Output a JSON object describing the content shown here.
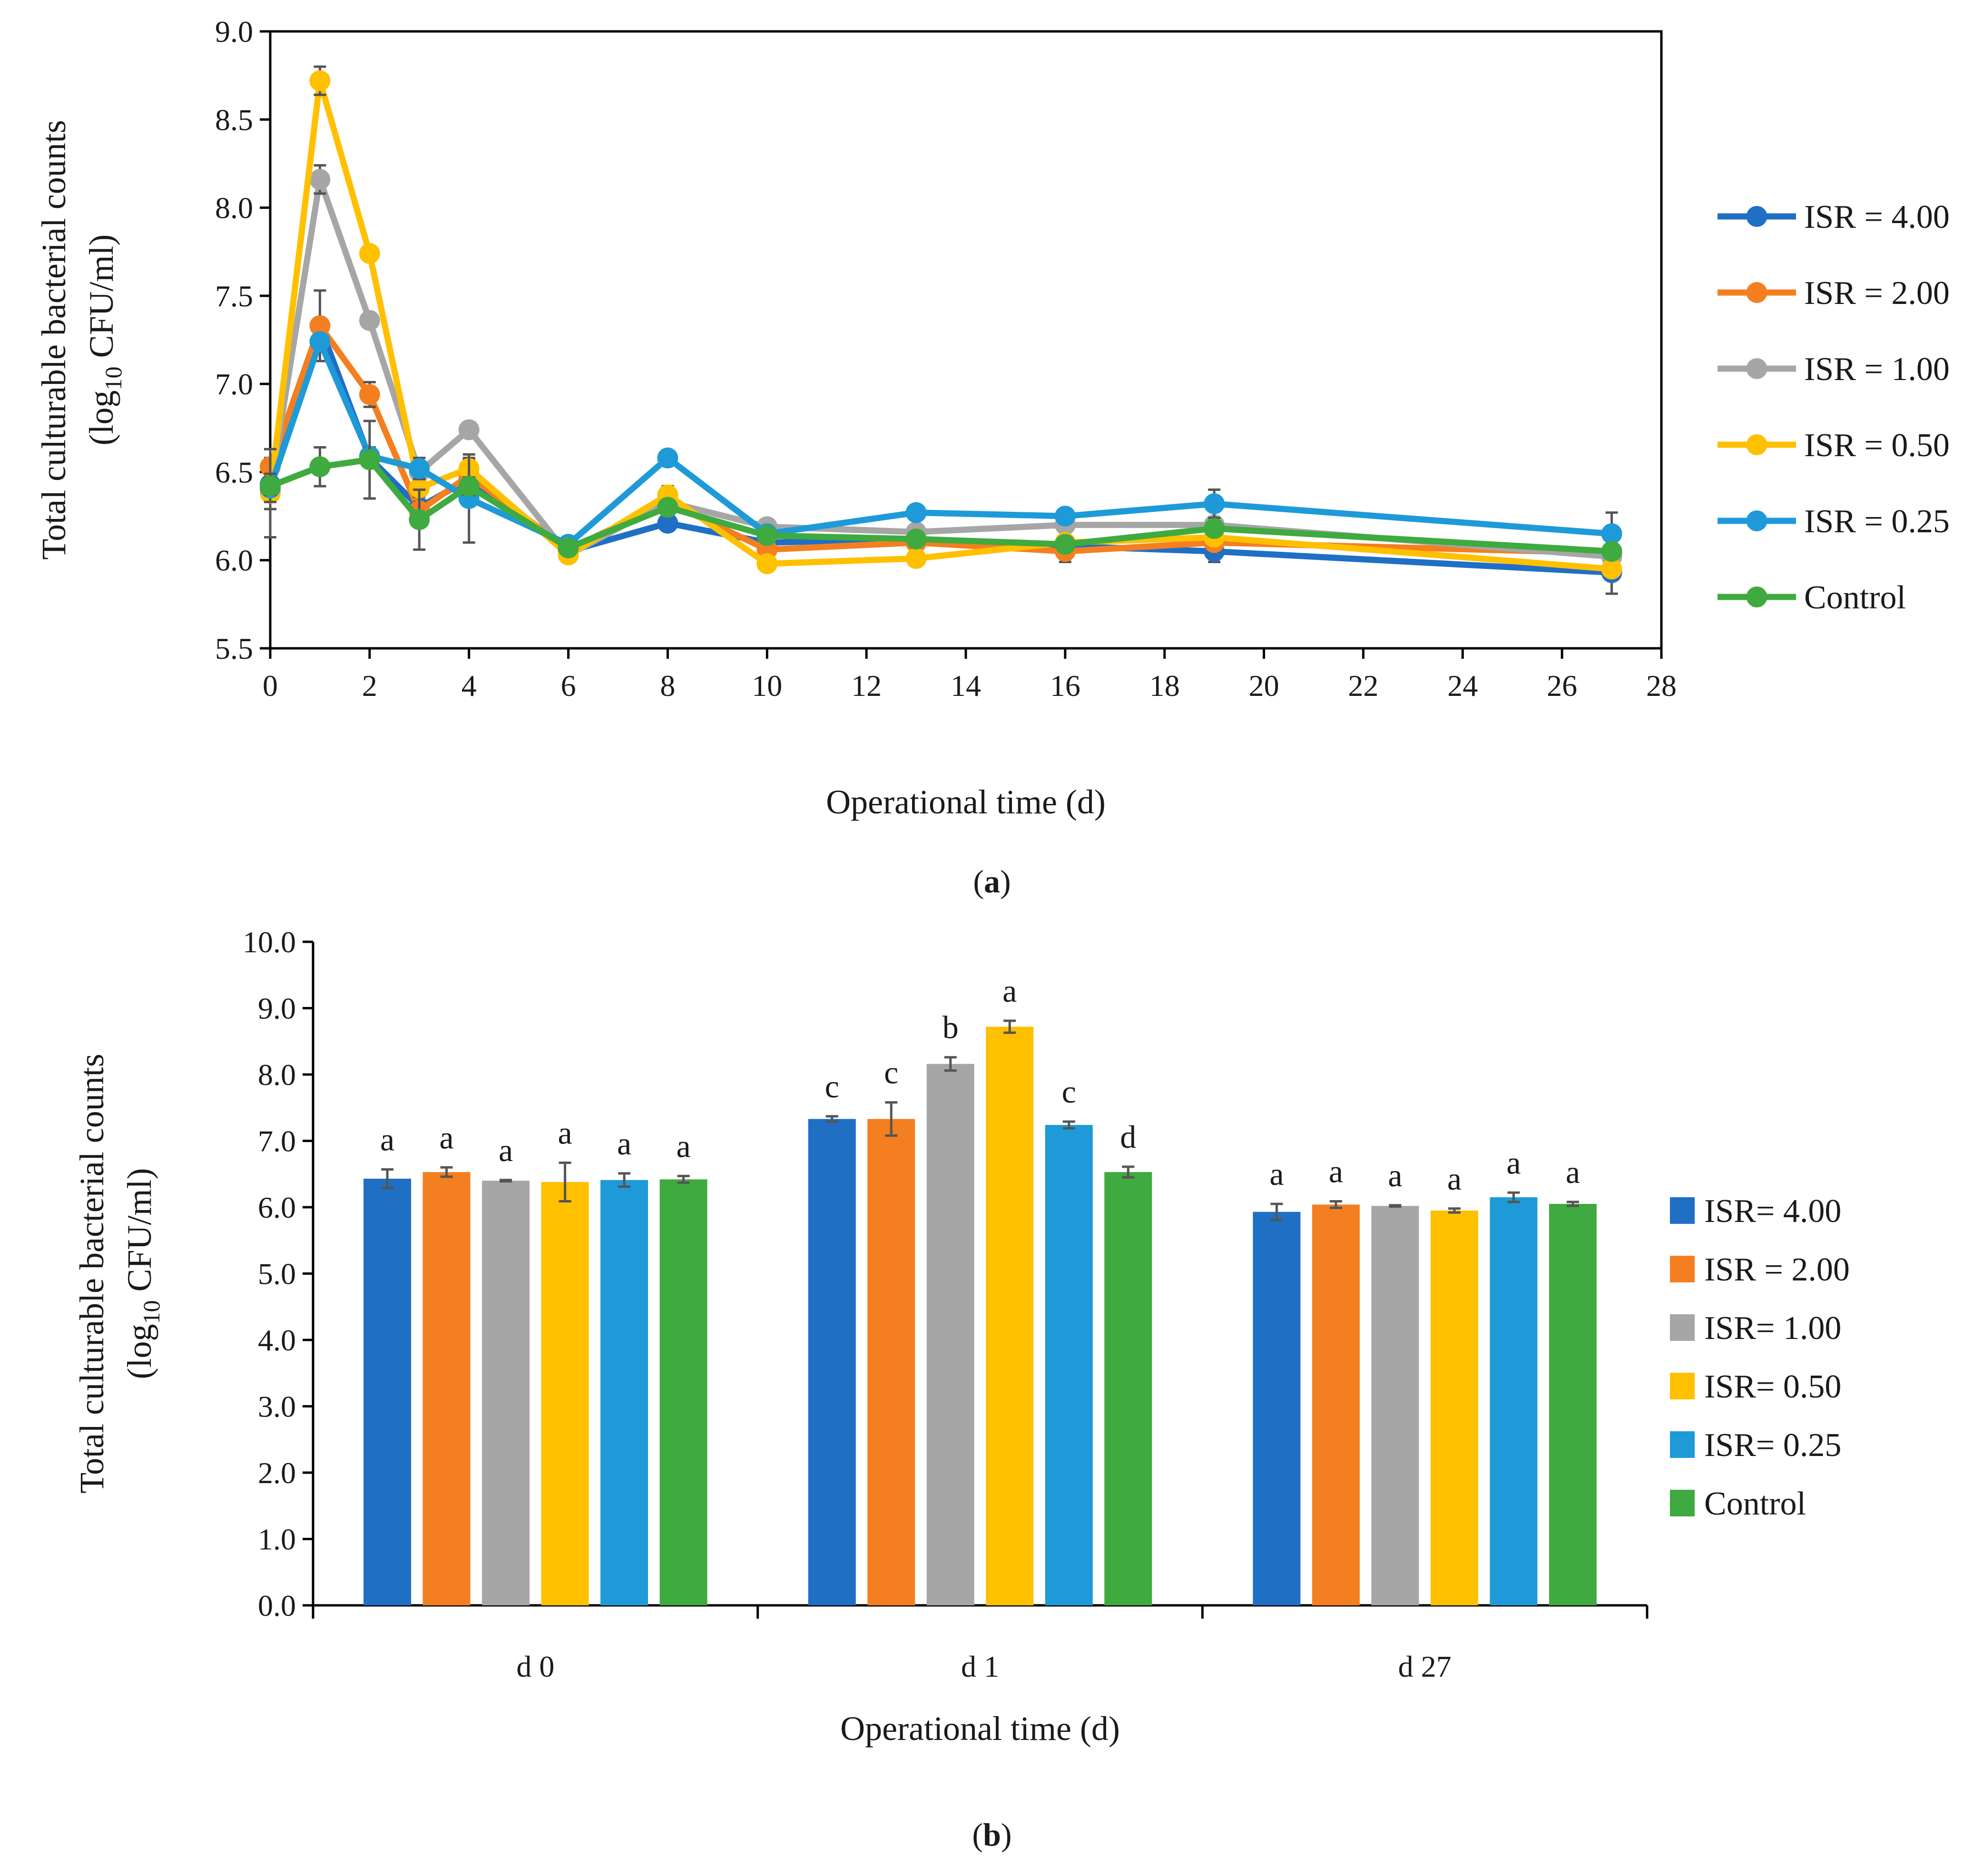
{
  "chart_data": [
    {
      "type": "line",
      "panel_label": "a",
      "title": "",
      "ylabel_line1": "Total culturable bacterial counts",
      "ylabel_line2": {
        "prefix": "(log",
        "sub": "10",
        "suffix": " CFU/ml)"
      },
      "xlabel": "Operational time (d)",
      "ylim": [
        5.5,
        9.0
      ],
      "ystep": 0.5,
      "xlim": [
        0,
        28
      ],
      "xstep": 2,
      "legend_position": "right",
      "x": [
        0,
        1,
        2,
        3,
        4,
        6,
        8,
        10,
        13,
        16,
        19,
        27
      ],
      "series": [
        {
          "name": "ISR = 4.00",
          "color": "#1f6fc5",
          "values": [
            6.43,
            7.33,
            6.58,
            6.3,
            6.46,
            6.05,
            6.21,
            6.1,
            6.12,
            6.08,
            6.05,
            5.93
          ],
          "errors": [
            0.14,
            0.03,
            0.05,
            0.1,
            0.12,
            0.05,
            0.04,
            0.04,
            0.03,
            0.03,
            0.06,
            0.12
          ]
        },
        {
          "name": "ISR = 2.00",
          "color": "#f47f20",
          "values": [
            6.53,
            7.33,
            6.94,
            6.28,
            6.48,
            6.06,
            6.33,
            6.06,
            6.1,
            6.05,
            6.1,
            6.04
          ],
          "errors": [
            0.05,
            0.2,
            0.07,
            0.05,
            0.05,
            0.04,
            0.04,
            0.05,
            0.03,
            0.06,
            0.05,
            0.03
          ]
        },
        {
          "name": "ISR = 1.00",
          "color": "#a6a6a6",
          "values": [
            6.4,
            8.16,
            7.36,
            6.5,
            6.74,
            6.03,
            6.33,
            6.19,
            6.16,
            6.2,
            6.2,
            6.02
          ],
          "errors": [
            0.02,
            0.08,
            0.03,
            0.04,
            0.03,
            0.03,
            0.04,
            0.03,
            0.02,
            0.03,
            0.03,
            0.02
          ]
        },
        {
          "name": "ISR = 0.50",
          "color": "#ffc000",
          "values": [
            6.38,
            8.72,
            7.74,
            6.41,
            6.52,
            6.03,
            6.37,
            5.98,
            6.01,
            6.1,
            6.13,
            5.95
          ],
          "errors": [
            0.25,
            0.08,
            0.03,
            0.05,
            0.05,
            0.03,
            0.05,
            0.03,
            0.03,
            0.03,
            0.04,
            0.02
          ]
        },
        {
          "name": "ISR = 0.25",
          "color": "#1e9ad8",
          "values": [
            6.41,
            7.24,
            6.59,
            6.52,
            6.35,
            6.09,
            6.58,
            6.15,
            6.27,
            6.25,
            6.32,
            6.15
          ],
          "errors": [
            0.08,
            0.04,
            0.05,
            0.06,
            0.25,
            0.03,
            0.04,
            0.03,
            0.02,
            0.03,
            0.08,
            0.12
          ]
        },
        {
          "name": "Control",
          "color": "#3faa3f",
          "values": [
            6.42,
            6.53,
            6.57,
            6.23,
            6.42,
            6.07,
            6.3,
            6.14,
            6.12,
            6.09,
            6.18,
            6.05
          ],
          "errors": [
            0.05,
            0.11,
            0.22,
            0.17,
            0.05,
            0.03,
            0.03,
            0.03,
            0.02,
            0.03,
            0.04,
            0.02
          ]
        }
      ]
    },
    {
      "type": "bar",
      "panel_label": "b",
      "title": "",
      "ylabel_line1": "Total culturable  bacterial counts",
      "ylabel_line2": {
        "prefix": "(log",
        "sub": "10",
        "suffix": " CFU/ml)"
      },
      "xlabel": "Operational time (d)",
      "ylim": [
        0.0,
        10.0
      ],
      "ystep": 1.0,
      "legend_position": "right",
      "categories": [
        "d 0",
        "d 1",
        "d 27"
      ],
      "series": [
        {
          "name": "ISR= 4.00",
          "color": "#1f6fc5",
          "values": [
            6.43,
            7.33,
            5.93
          ],
          "errors": [
            0.14,
            0.04,
            0.12
          ],
          "letters": [
            "a",
            "c",
            "a"
          ]
        },
        {
          "name": "ISR = 2.00",
          "color": "#f47f20",
          "values": [
            6.53,
            7.33,
            6.04
          ],
          "errors": [
            0.07,
            0.25,
            0.05
          ],
          "letters": [
            "a",
            "c",
            "a"
          ]
        },
        {
          "name": "ISR= 1.00",
          "color": "#a6a6a6",
          "values": [
            6.4,
            8.16,
            6.02
          ],
          "errors": [
            0.01,
            0.1,
            0.01
          ],
          "letters": [
            "a",
            "b",
            "a"
          ]
        },
        {
          "name": "ISR= 0.50",
          "color": "#ffc000",
          "values": [
            6.38,
            8.72,
            5.95
          ],
          "errors": [
            0.29,
            0.09,
            0.03
          ],
          "letters": [
            "a",
            "a",
            "a"
          ]
        },
        {
          "name": "ISR= 0.25",
          "color": "#1e9ad8",
          "values": [
            6.41,
            7.24,
            6.15
          ],
          "errors": [
            0.1,
            0.05,
            0.07
          ],
          "letters": [
            "a",
            "c",
            "a"
          ]
        },
        {
          "name": "Control",
          "color": "#3faa3f",
          "values": [
            6.42,
            6.53,
            6.05
          ],
          "errors": [
            0.05,
            0.08,
            0.03
          ],
          "letters": [
            "a",
            "d",
            "a"
          ]
        }
      ]
    }
  ]
}
